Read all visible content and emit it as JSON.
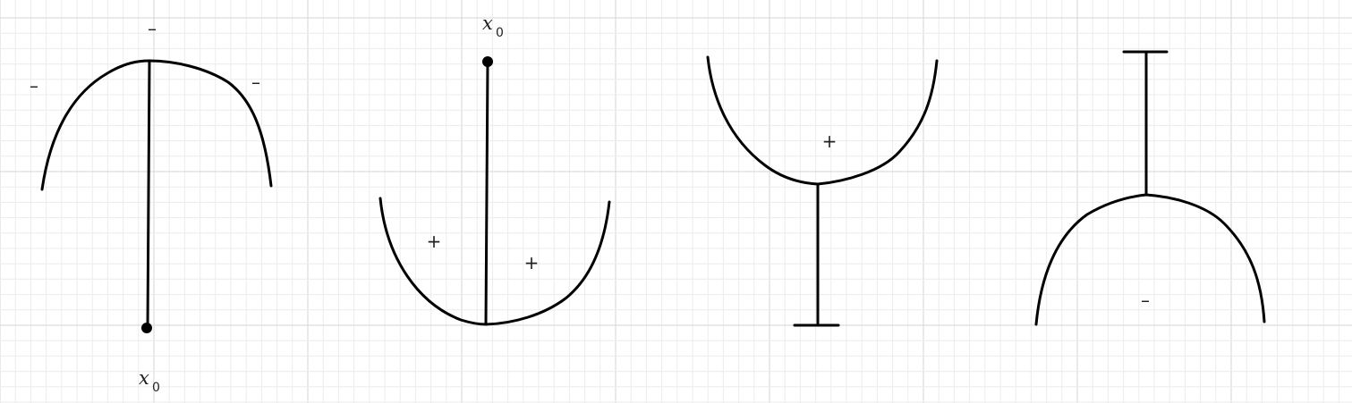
{
  "colors": {
    "background": "#ffffff",
    "grid_minor": "#ececec",
    "grid_major": "#d6d6d6",
    "ink": "#000000"
  },
  "panels": [
    {
      "labels": {
        "point_var": "x",
        "point_sub": "0",
        "sign_top": "–",
        "sign_left": "–",
        "sign_right": "–"
      }
    },
    {
      "labels": {
        "point_var": "x",
        "point_sub": "0",
        "sign_left": "+",
        "sign_right": "+"
      }
    },
    {
      "labels": {
        "sign_inside": "+"
      }
    },
    {
      "labels": {
        "sign_inside": "–"
      }
    }
  ]
}
